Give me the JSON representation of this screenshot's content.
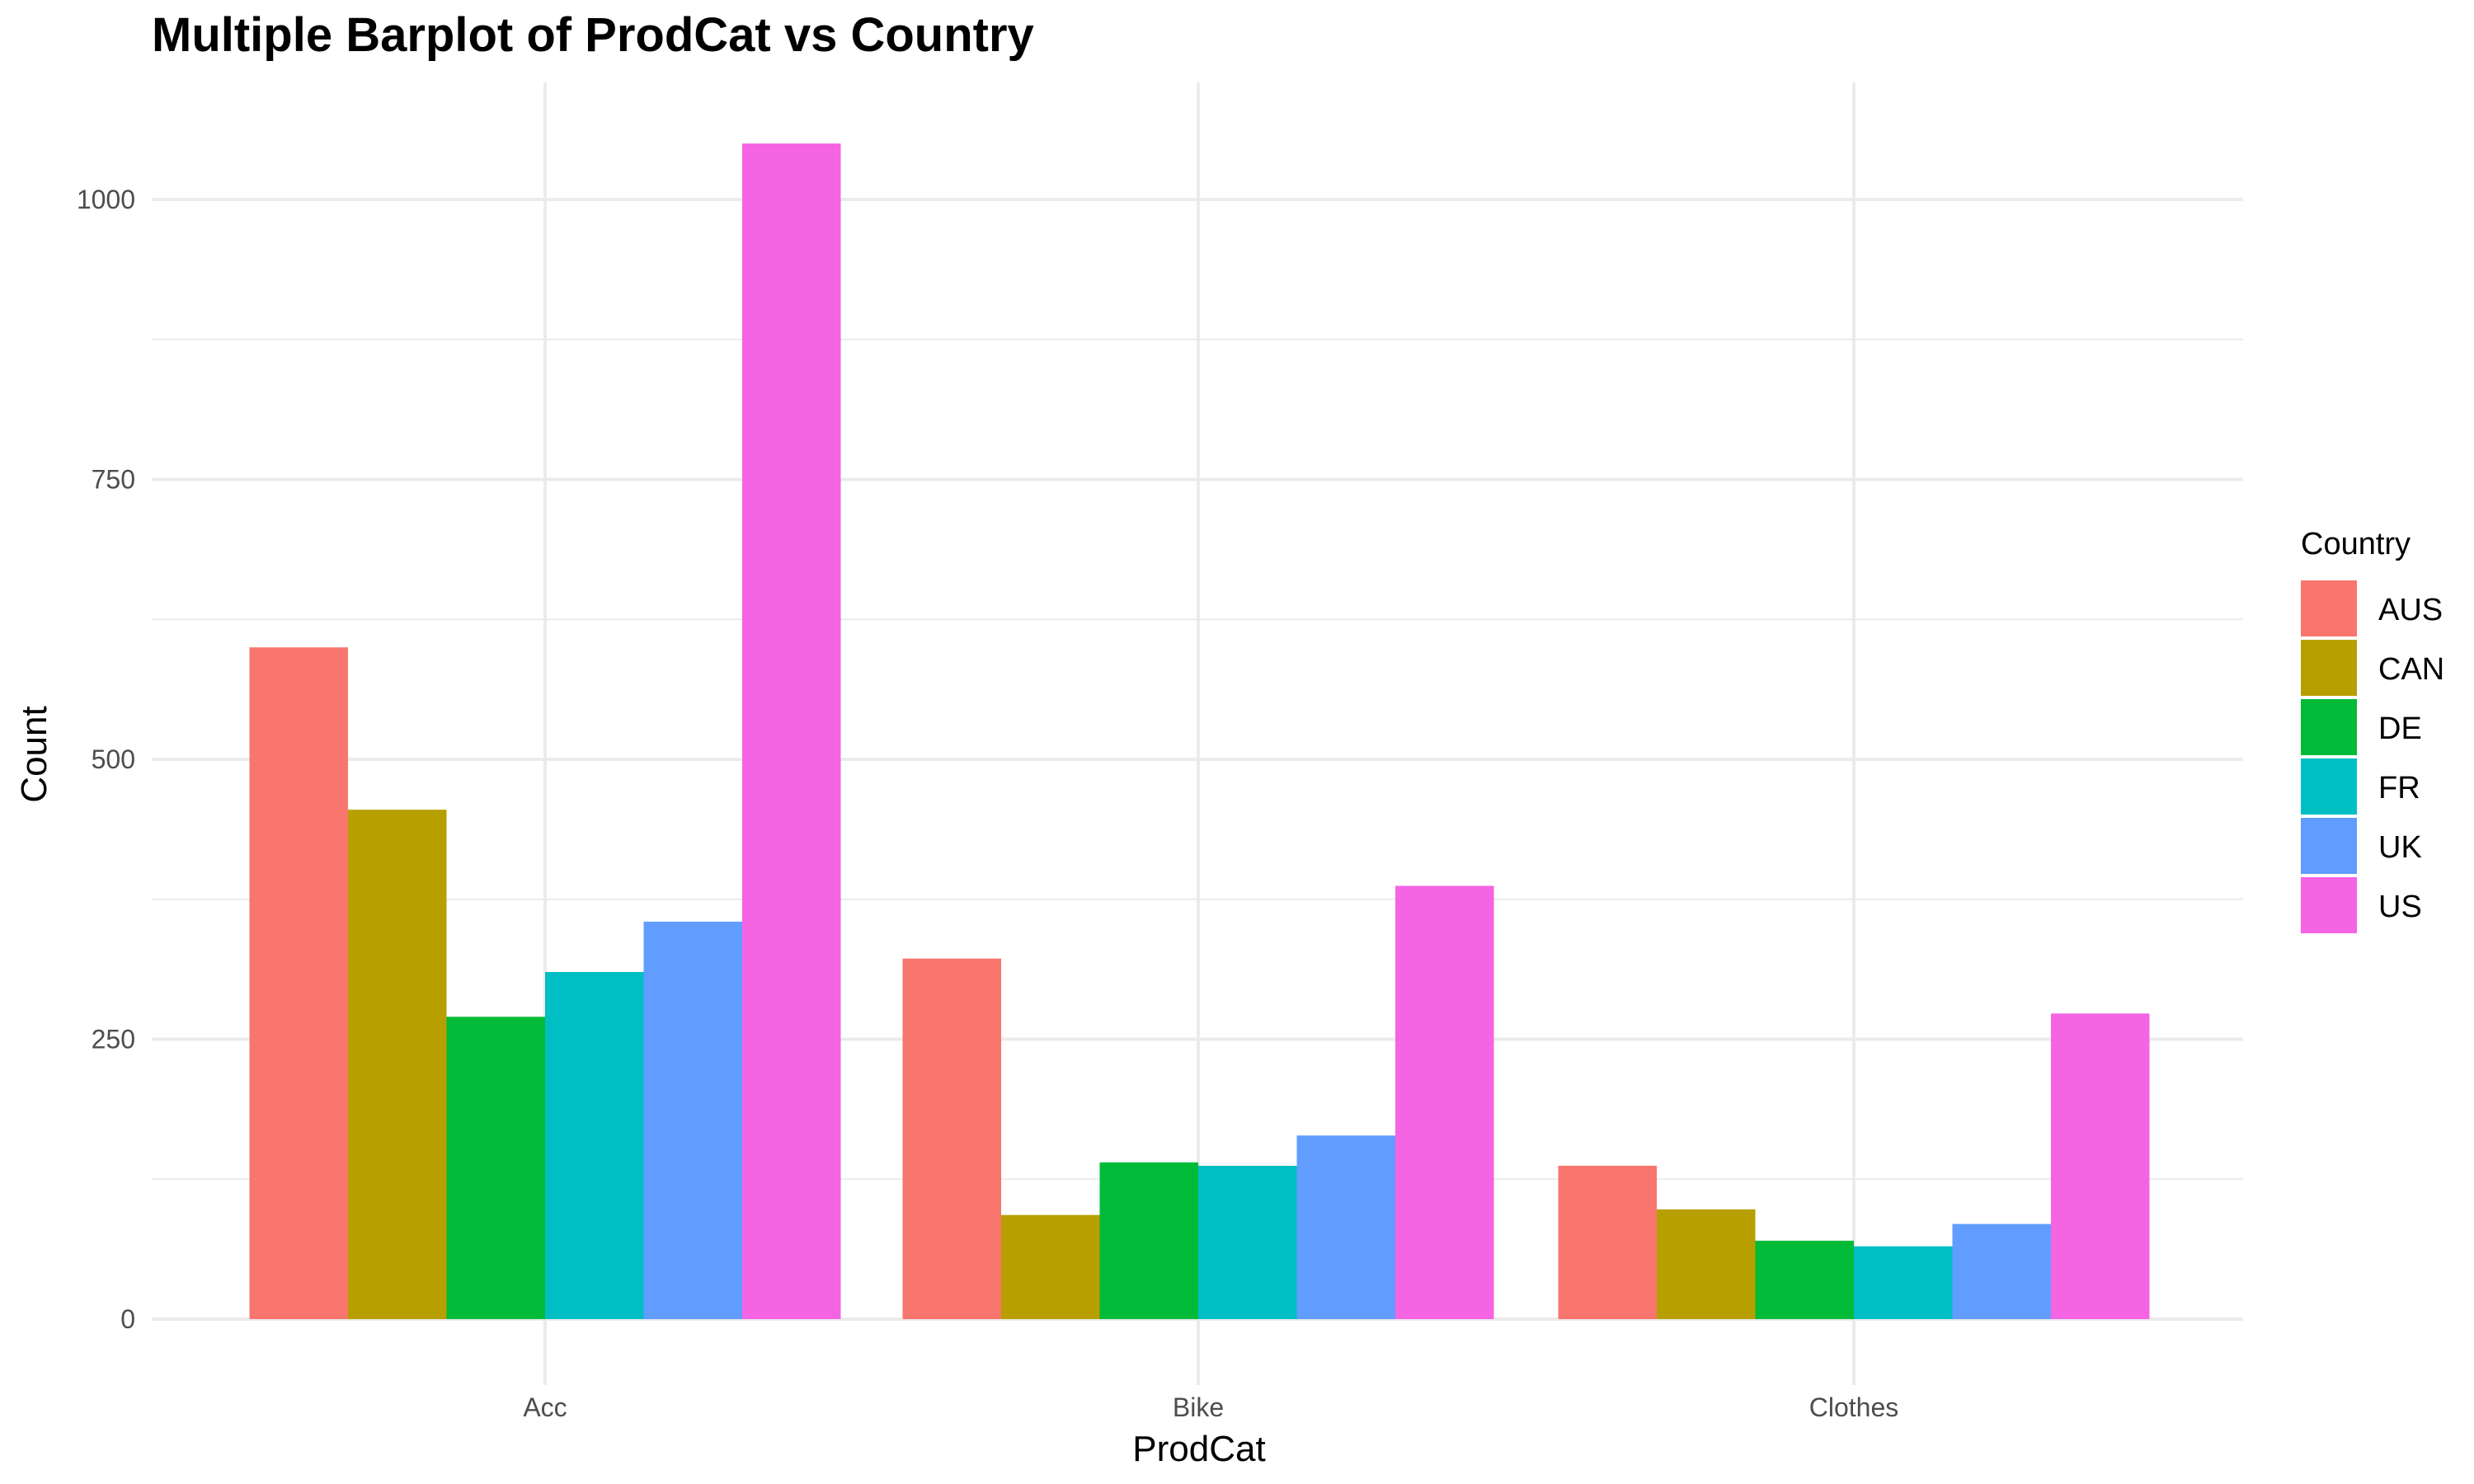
{
  "chart_data": {
    "type": "bar",
    "title": "Multiple Barplot of ProdCat vs Country",
    "xlabel": "ProdCat",
    "ylabel": "Count",
    "categories": [
      "Acc",
      "Bike",
      "Clothes"
    ],
    "ylim": [
      0,
      1100
    ],
    "yticks": [
      0,
      250,
      500,
      750,
      1000
    ],
    "grid": true,
    "legend": {
      "title": "Country",
      "position": "right"
    },
    "series": [
      {
        "name": "AUS",
        "color": "#F8766D",
        "values": [
          600,
          322,
          137
        ]
      },
      {
        "name": "CAN",
        "color": "#B79F00",
        "values": [
          455,
          93,
          98
        ]
      },
      {
        "name": "DE",
        "color": "#00BA38",
        "values": [
          270,
          140,
          70
        ]
      },
      {
        "name": "FR",
        "color": "#00BFC4",
        "values": [
          310,
          137,
          65
        ]
      },
      {
        "name": "UK",
        "color": "#619CFF",
        "values": [
          355,
          164,
          85
        ]
      },
      {
        "name": "US",
        "color": "#F564E3",
        "values": [
          1050,
          387,
          273
        ]
      }
    ]
  }
}
